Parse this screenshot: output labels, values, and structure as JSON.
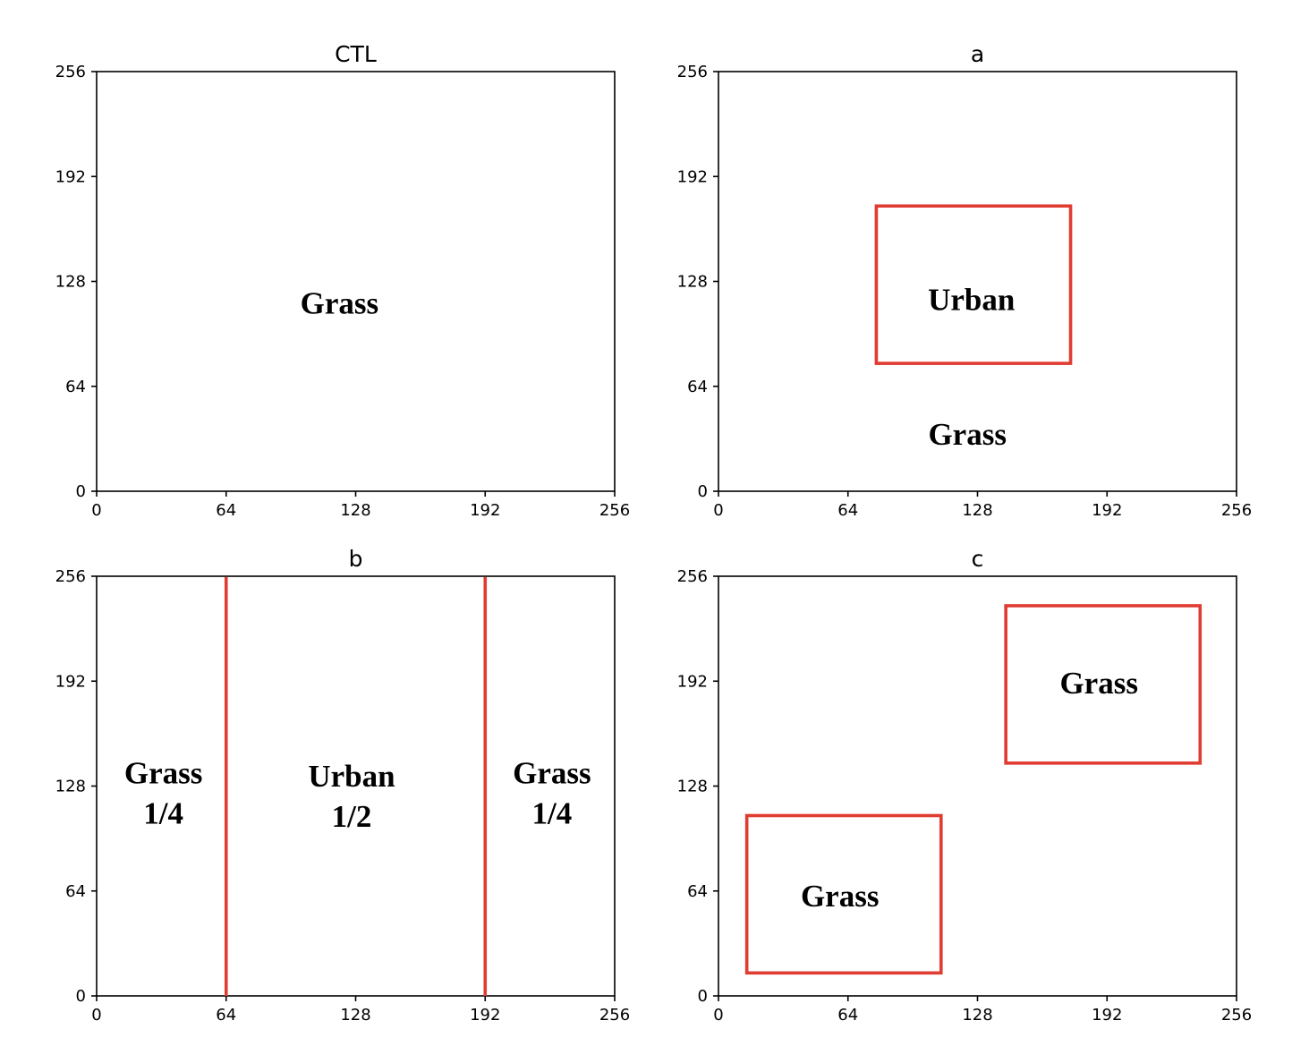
{
  "chart_data": [
    {
      "type": "diagram",
      "title": "CTL",
      "xlim": [
        0,
        256
      ],
      "ylim": [
        0,
        256
      ],
      "xticks": [
        0,
        64,
        128,
        192,
        256
      ],
      "yticks": [
        0,
        64,
        128,
        192,
        256
      ],
      "rects": [],
      "vlines": [],
      "labels": [
        {
          "text": [
            "Grass"
          ],
          "x": 120,
          "y": 115
        }
      ]
    },
    {
      "type": "diagram",
      "title": "a",
      "xlim": [
        0,
        256
      ],
      "ylim": [
        0,
        256
      ],
      "xticks": [
        0,
        64,
        128,
        192,
        256
      ],
      "yticks": [
        0,
        64,
        128,
        192,
        256
      ],
      "rects": [
        {
          "x0": 78,
          "y0": 78,
          "x1": 174,
          "y1": 174
        }
      ],
      "vlines": [],
      "labels": [
        {
          "text": [
            "Urban"
          ],
          "x": 125,
          "y": 117
        },
        {
          "text": [
            "Grass"
          ],
          "x": 123,
          "y": 35
        }
      ]
    },
    {
      "type": "diagram",
      "title": "b",
      "xlim": [
        0,
        256
      ],
      "ylim": [
        0,
        256
      ],
      "xticks": [
        0,
        64,
        128,
        192,
        256
      ],
      "yticks": [
        0,
        64,
        128,
        192,
        256
      ],
      "rects": [],
      "vlines": [
        64,
        192
      ],
      "labels": [
        {
          "text": [
            "Grass",
            "1/4"
          ],
          "x": 33,
          "y": 124
        },
        {
          "text": [
            "Urban",
            "1/2"
          ],
          "x": 126,
          "y": 122
        },
        {
          "text": [
            "Grass",
            "1/4"
          ],
          "x": 225,
          "y": 124
        }
      ]
    },
    {
      "type": "diagram",
      "title": "c",
      "xlim": [
        0,
        256
      ],
      "ylim": [
        0,
        256
      ],
      "xticks": [
        0,
        64,
        128,
        192,
        256
      ],
      "yticks": [
        0,
        64,
        128,
        192,
        256
      ],
      "rects": [
        {
          "x0": 14,
          "y0": 14,
          "x1": 110,
          "y1": 110
        },
        {
          "x0": 142,
          "y0": 142,
          "x1": 238,
          "y1": 238
        }
      ],
      "vlines": [],
      "labels": [
        {
          "text": [
            "Grass"
          ],
          "x": 60,
          "y": 61
        },
        {
          "text": [
            "Grass"
          ],
          "x": 188,
          "y": 191
        }
      ]
    }
  ]
}
